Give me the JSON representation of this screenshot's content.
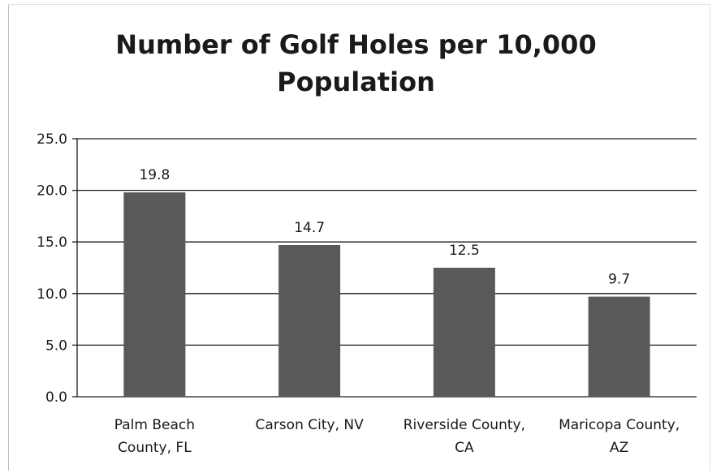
{
  "chart_data": {
    "type": "bar",
    "title": "Number of Golf Holes per 10,000 Population",
    "title_lines": [
      "Number of Golf Holes per 10,000",
      "Population"
    ],
    "categories": [
      [
        "Palm Beach",
        "County, FL"
      ],
      [
        "Carson City, NV"
      ],
      [
        "Riverside County,",
        "CA"
      ],
      [
        "Maricopa County,",
        "AZ"
      ]
    ],
    "values": [
      19.8,
      14.7,
      12.5,
      9.7
    ],
    "data_labels": [
      "19.8",
      "14.7",
      "12.5",
      "9.7"
    ],
    "y_ticks": [
      "0.0",
      "5.0",
      "10.0",
      "15.0",
      "20.0",
      "25.0"
    ],
    "ylim": [
      0,
      25
    ],
    "grid": true,
    "legend": false,
    "bar_color": "#595959"
  }
}
